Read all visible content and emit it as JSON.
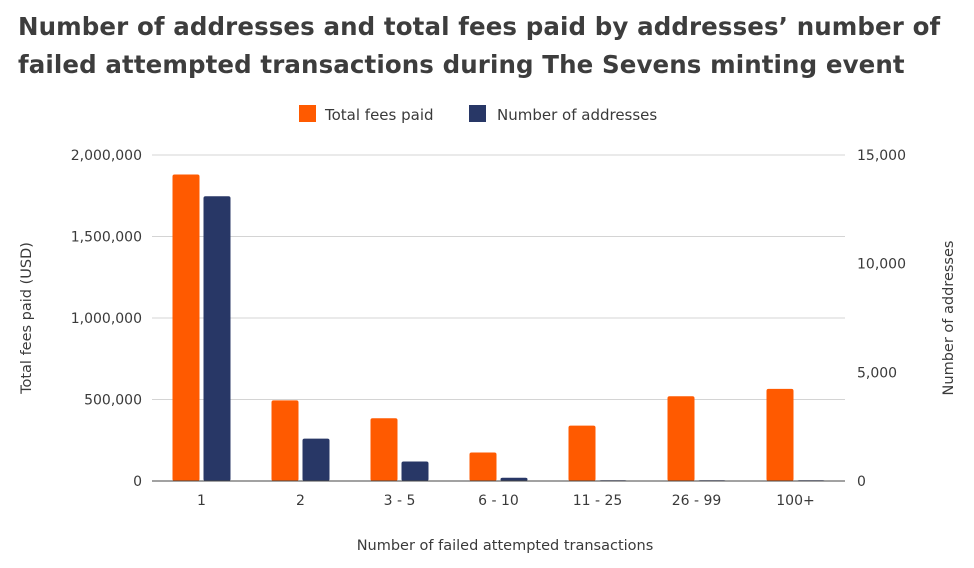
{
  "chart_data": {
    "type": "bar",
    "title": "Number of addresses and total fees paid by addresses’ number of failed attempted transactions during The Sevens minting event",
    "xlabel": "Number of failed attempted transactions",
    "ylabel_left": "Total fees paid (USD)",
    "ylabel_right": "Number of addresses",
    "categories": [
      "1",
      "2",
      "3 - 5",
      "6 - 10",
      "11 - 25",
      "26 - 99",
      "100+"
    ],
    "series": [
      {
        "name": "Total fees paid",
        "axis": "left",
        "color": "#FF5A00",
        "values": [
          1880000,
          495000,
          385000,
          175000,
          340000,
          520000,
          565000
        ]
      },
      {
        "name": "Number of addresses",
        "axis": "right",
        "color": "#283766",
        "values": [
          13100,
          1950,
          900,
          150,
          20,
          15,
          5
        ]
      }
    ],
    "ylim_left": [
      0,
      2000000
    ],
    "ylim_right": [
      0,
      15000
    ],
    "yticks_left": [
      "0",
      "500,000",
      "1,000,000",
      "1,500,000",
      "2,000,000"
    ],
    "yticks_right": [
      "0",
      "5,000",
      "10,000",
      "15,000"
    ],
    "grid": true,
    "legend_position": "top-center"
  }
}
